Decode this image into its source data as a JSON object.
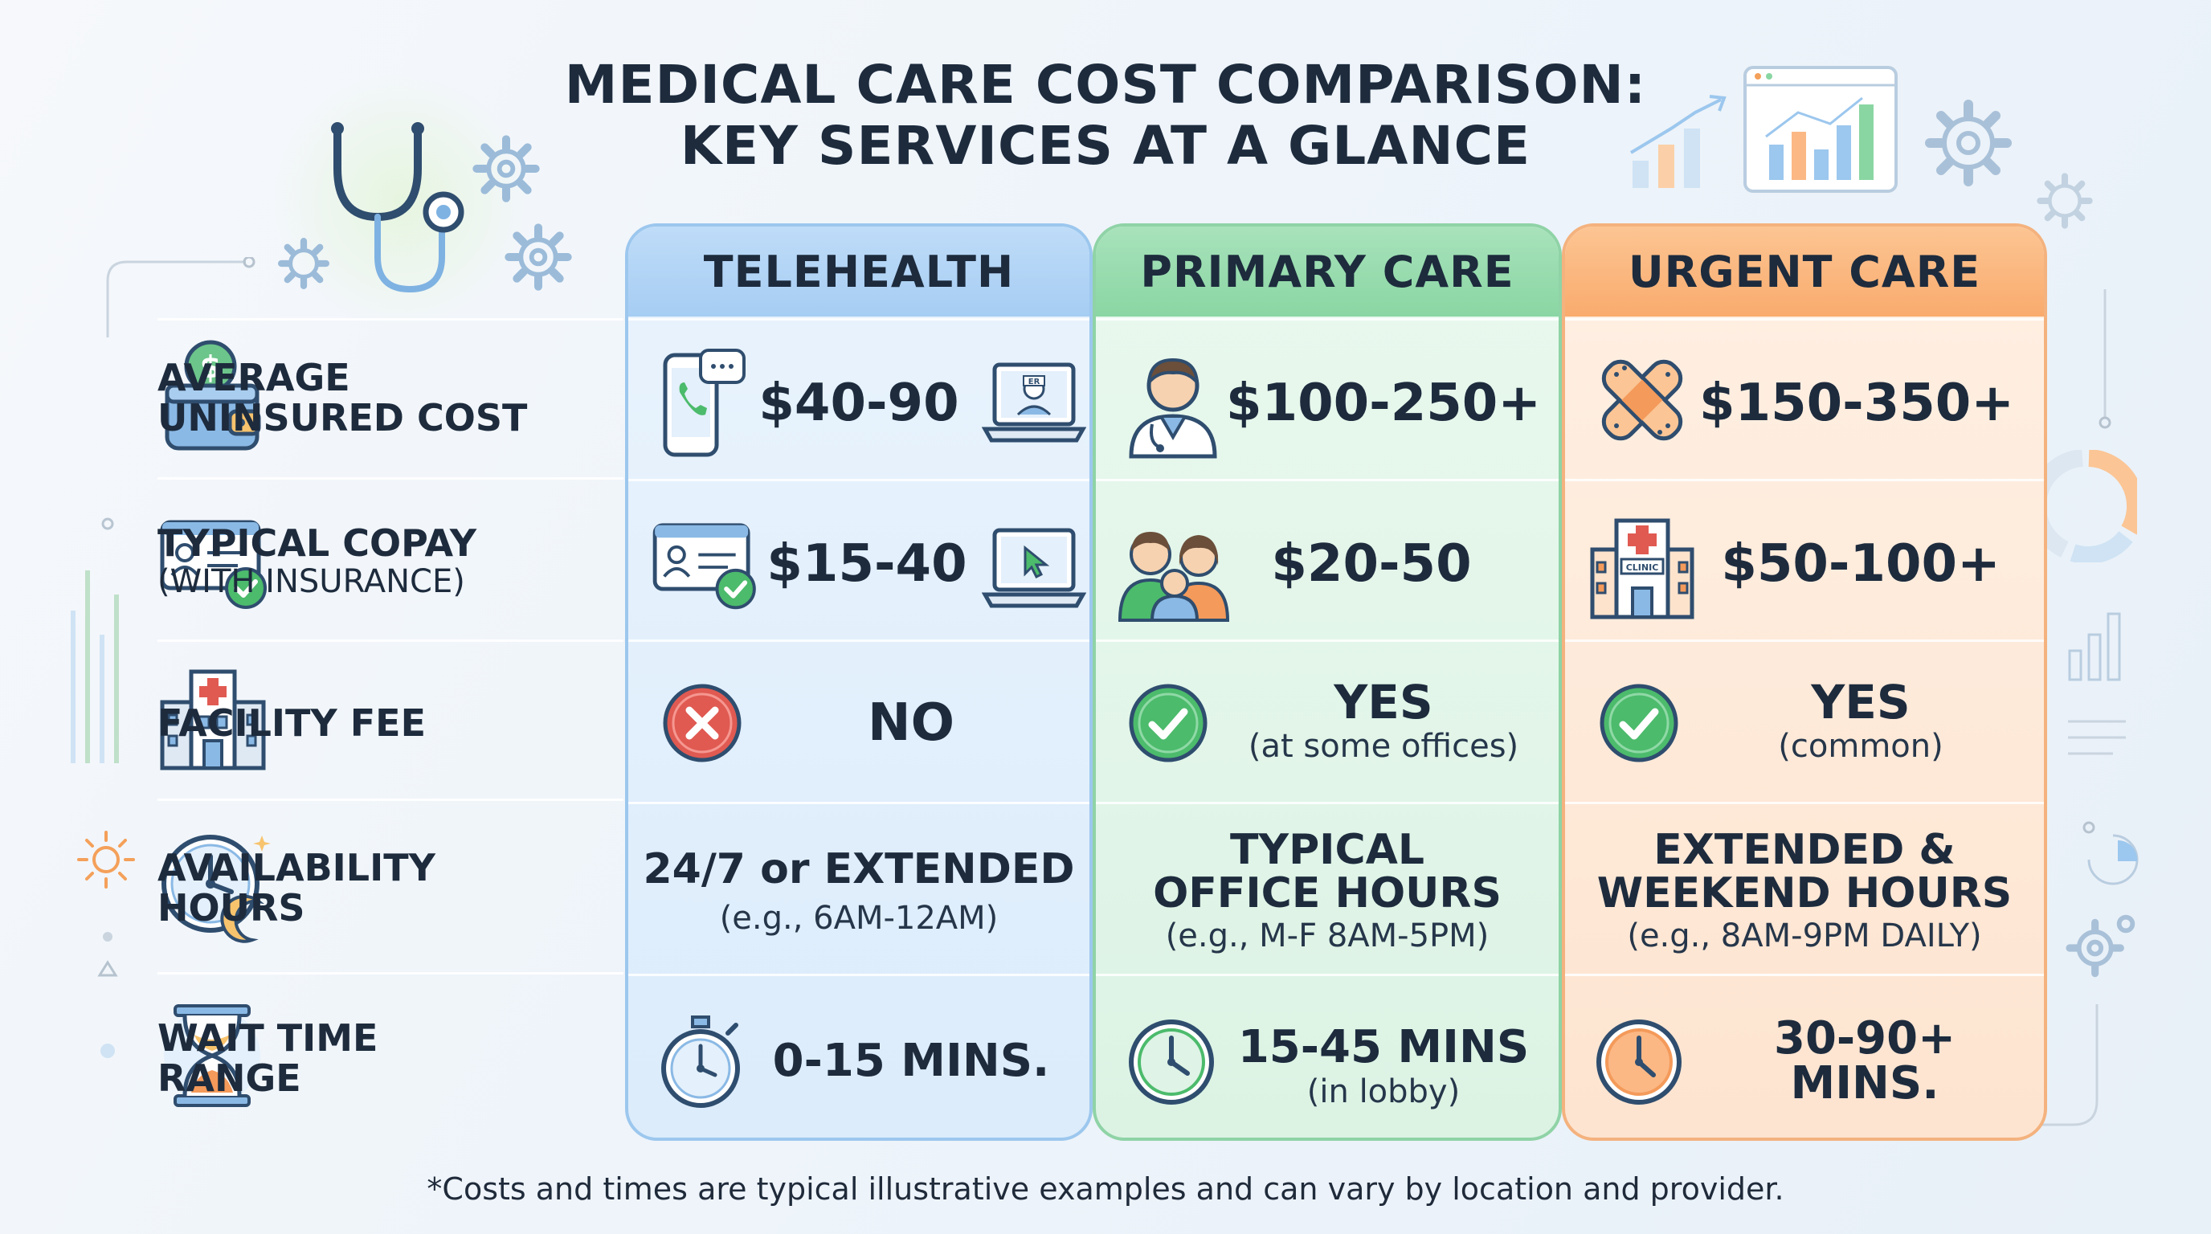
{
  "title": {
    "line1": "MEDICAL CARE COST COMPARISON:",
    "line2": "KEY SERVICES AT A GLANCE"
  },
  "columns": {
    "telehealth": "TELEHEALTH",
    "primary": "PRIMARY CARE",
    "urgent": "URGENT CARE"
  },
  "rows": {
    "cost": {
      "label_line1": "AVERAGE",
      "label_line2": "UNINSURED COST",
      "telehealth": "$40-90",
      "primary": "$100-250+",
      "urgent": "$150-350+"
    },
    "copay": {
      "label_line1": "TYPICAL COPAY",
      "label_line2": "(WITH INSURANCE)",
      "telehealth": "$15-40",
      "primary": "$20-50",
      "urgent": "$50-100+"
    },
    "facility": {
      "label": "FACILITY FEE",
      "telehealth": "NO",
      "primary": "YES",
      "primary_note": "(at some offices)",
      "urgent": "YES",
      "urgent_note": "(common)"
    },
    "hours": {
      "label_line1": "AVAILABILITY",
      "label_line2": "HOURS",
      "telehealth": "24/7 or EXTENDED",
      "telehealth_note": "(e.g., 6AM-12AM)",
      "primary_line1": "TYPICAL",
      "primary_line2": "OFFICE HOURS",
      "primary_note": "(e.g., M-F 8AM-5PM)",
      "urgent_line1": "EXTENDED &",
      "urgent_line2": "WEEKEND HOURS",
      "urgent_note": "(e.g., 8AM-9PM DAILY)"
    },
    "wait": {
      "label_line1": "WAIT TIME",
      "label_line2": "RANGE",
      "telehealth": "0-15 MINS.",
      "primary": "15-45 MINS",
      "primary_note": "(in lobby)",
      "urgent": "30-90+ MINS."
    }
  },
  "icons": {
    "clinic_sign": "CLINIC",
    "er_sign": "ER"
  },
  "footnote": "*Costs and times are typical illustrative examples and can vary by location and provider.",
  "colors": {
    "telehealth": "#a6cdf3",
    "primary": "#8ad6a3",
    "urgent": "#f9ab6d",
    "check": "#4cbb6c",
    "cross": "#e05a52"
  }
}
